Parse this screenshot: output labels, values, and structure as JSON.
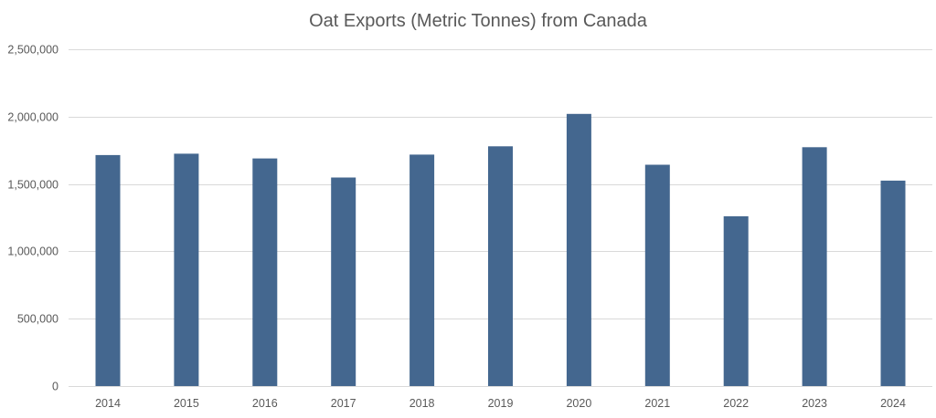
{
  "chart_data": {
    "type": "bar",
    "title": "Oat Exports (Metric Tonnes) from Canada",
    "xlabel": "",
    "ylabel": "",
    "categories": [
      "2014",
      "2015",
      "2016",
      "2017",
      "2018",
      "2019",
      "2020",
      "2021",
      "2022",
      "2023",
      "2024"
    ],
    "values": [
      1715000,
      1725000,
      1690000,
      1548000,
      1718000,
      1780000,
      2020000,
      1643000,
      1260000,
      1773000,
      1525000
    ],
    "ylim": [
      0,
      2500000
    ],
    "yticks": [
      0,
      500000,
      1000000,
      1500000,
      2000000,
      2500000
    ],
    "ytick_labels": [
      "0",
      "500,000",
      "1,000,000",
      "1,500,000",
      "2,000,000",
      "2,500,000"
    ],
    "grid": true,
    "legend": "none",
    "bar_color": "#44678f"
  }
}
